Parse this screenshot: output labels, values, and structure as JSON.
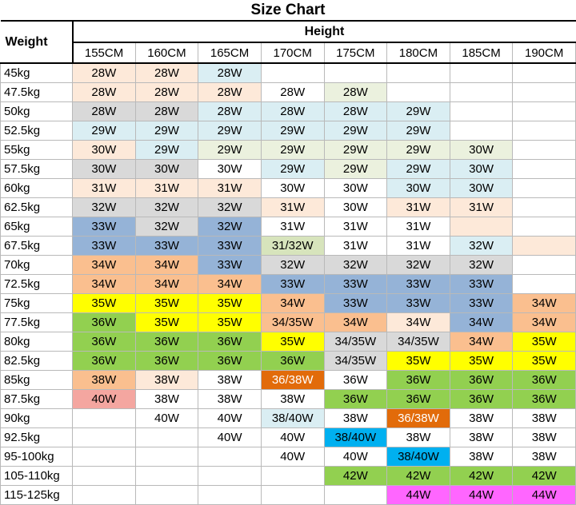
{
  "title": "Size Chart",
  "header": {
    "weight_label": "Weight",
    "height_label": "Height",
    "columns": [
      "155CM",
      "160CM",
      "165CM",
      "170CM",
      "175CM",
      "180CM",
      "185CM",
      "190CM"
    ]
  },
  "palette": {
    "white": "#FFFFFF",
    "peach": "#FDE9D9",
    "ltblue": "#DAEEF3",
    "ltgreen": "#EBF1DE",
    "gray": "#D9D9D9",
    "medblue": "#95B3D7",
    "tan": "#FABF8F",
    "yellow": "#FFFF00",
    "green": "#92D050",
    "dkorange": "#E26B0A",
    "cyan": "#00B0F0",
    "magenta": "#FF66FF",
    "ltolive": "#D7E4BC",
    "salmon": "#F4A6A0"
  },
  "chart_data": {
    "type": "table",
    "title": "Size Chart",
    "row_axis_label": "Weight",
    "col_axis_label": "Height",
    "columns": [
      "155CM",
      "160CM",
      "165CM",
      "170CM",
      "175CM",
      "180CM",
      "185CM",
      "190CM"
    ],
    "rows": [
      {
        "w": "45kg",
        "cells": [
          [
            "28W",
            "peach"
          ],
          [
            "28W",
            "peach"
          ],
          [
            "28W",
            "ltblue"
          ],
          [
            "",
            ""
          ],
          [
            "",
            ""
          ],
          [
            "",
            ""
          ],
          [
            "",
            ""
          ],
          [
            "",
            ""
          ]
        ]
      },
      {
        "w": "47.5kg",
        "cells": [
          [
            "28W",
            "peach"
          ],
          [
            "28W",
            "peach"
          ],
          [
            "28W",
            "peach"
          ],
          [
            "28W",
            "white"
          ],
          [
            "28W",
            "ltgreen"
          ],
          [
            "",
            ""
          ],
          [
            "",
            ""
          ],
          [
            "",
            ""
          ]
        ]
      },
      {
        "w": "50kg",
        "cells": [
          [
            "28W",
            "gray"
          ],
          [
            "28W",
            "gray"
          ],
          [
            "28W",
            "ltblue"
          ],
          [
            "28W",
            "ltblue"
          ],
          [
            "28W",
            "ltblue"
          ],
          [
            "29W",
            "ltblue"
          ],
          [
            "",
            ""
          ],
          [
            "",
            ""
          ]
        ]
      },
      {
        "w": "52.5kg",
        "cells": [
          [
            "29W",
            "ltblue"
          ],
          [
            "29W",
            "ltblue"
          ],
          [
            "29W",
            "ltblue"
          ],
          [
            "29W",
            "ltblue"
          ],
          [
            "29W",
            "ltblue"
          ],
          [
            "29W",
            "ltblue"
          ],
          [
            "",
            ""
          ],
          [
            "",
            ""
          ]
        ]
      },
      {
        "w": "55kg",
        "cells": [
          [
            "30W",
            "peach"
          ],
          [
            "29W",
            "ltblue"
          ],
          [
            "29W",
            "ltgreen"
          ],
          [
            "29W",
            "ltgreen"
          ],
          [
            "29W",
            "ltgreen"
          ],
          [
            "29W",
            "ltgreen"
          ],
          [
            "30W",
            "ltgreen"
          ],
          [
            "",
            ""
          ]
        ]
      },
      {
        "w": "57.5kg",
        "cells": [
          [
            "30W",
            "gray"
          ],
          [
            "30W",
            "gray"
          ],
          [
            "30W",
            "white"
          ],
          [
            "29W",
            "ltblue"
          ],
          [
            "29W",
            "ltgreen"
          ],
          [
            "29W",
            "ltblue"
          ],
          [
            "30W",
            "ltblue"
          ],
          [
            "",
            ""
          ]
        ]
      },
      {
        "w": "60kg",
        "cells": [
          [
            "31W",
            "peach"
          ],
          [
            "31W",
            "peach"
          ],
          [
            "31W",
            "peach"
          ],
          [
            "30W",
            "white"
          ],
          [
            "30W",
            "white"
          ],
          [
            "30W",
            "ltblue"
          ],
          [
            "30W",
            "ltblue"
          ],
          [
            "",
            ""
          ]
        ]
      },
      {
        "w": "62.5kg",
        "cells": [
          [
            "32W",
            "gray"
          ],
          [
            "32W",
            "gray"
          ],
          [
            "32W",
            "gray"
          ],
          [
            "31W",
            "peach"
          ],
          [
            "30W",
            "white"
          ],
          [
            "31W",
            "peach"
          ],
          [
            "31W",
            "peach"
          ],
          [
            "",
            ""
          ]
        ]
      },
      {
        "w": "65kg",
        "cells": [
          [
            "33W",
            "medblue"
          ],
          [
            "32W",
            "gray"
          ],
          [
            "32W",
            "medblue"
          ],
          [
            "31W",
            "white"
          ],
          [
            "31W",
            "white"
          ],
          [
            "31W",
            "white"
          ],
          [
            "",
            "peach"
          ],
          [
            "",
            ""
          ]
        ]
      },
      {
        "w": "67.5kg",
        "cells": [
          [
            "33W",
            "medblue"
          ],
          [
            "33W",
            "medblue"
          ],
          [
            "33W",
            "medblue"
          ],
          [
            "31/32W",
            "ltolive"
          ],
          [
            "31W",
            "white"
          ],
          [
            "31W",
            "white"
          ],
          [
            "32W",
            "ltblue"
          ],
          [
            "",
            "peach"
          ]
        ]
      },
      {
        "w": "70kg",
        "cells": [
          [
            "34W",
            "tan"
          ],
          [
            "34W",
            "tan"
          ],
          [
            "33W",
            "medblue"
          ],
          [
            "32W",
            "gray"
          ],
          [
            "32W",
            "gray"
          ],
          [
            "32W",
            "gray"
          ],
          [
            "32W",
            "gray"
          ],
          [
            "",
            ""
          ]
        ]
      },
      {
        "w": "72.5kg",
        "cells": [
          [
            "34W",
            "tan"
          ],
          [
            "34W",
            "tan"
          ],
          [
            "34W",
            "tan"
          ],
          [
            "33W",
            "medblue"
          ],
          [
            "33W",
            "medblue"
          ],
          [
            "33W",
            "medblue"
          ],
          [
            "33W",
            "medblue"
          ],
          [
            "",
            ""
          ]
        ]
      },
      {
        "w": "75kg",
        "cells": [
          [
            "35W",
            "yellow"
          ],
          [
            "35W",
            "yellow"
          ],
          [
            "35W",
            "yellow"
          ],
          [
            "34W",
            "tan"
          ],
          [
            "33W",
            "medblue"
          ],
          [
            "33W",
            "medblue"
          ],
          [
            "33W",
            "medblue"
          ],
          [
            "34W",
            "tan"
          ]
        ]
      },
      {
        "w": "77.5kg",
        "cells": [
          [
            "36W",
            "green"
          ],
          [
            "35W",
            "yellow"
          ],
          [
            "35W",
            "yellow"
          ],
          [
            "34/35W",
            "tan"
          ],
          [
            "34W",
            "tan"
          ],
          [
            "34W",
            "peach"
          ],
          [
            "34W",
            "medblue"
          ],
          [
            "34W",
            "tan"
          ]
        ]
      },
      {
        "w": "80kg",
        "cells": [
          [
            "36W",
            "green"
          ],
          [
            "36W",
            "green"
          ],
          [
            "36W",
            "green"
          ],
          [
            "35W",
            "yellow"
          ],
          [
            "34/35W",
            "gray"
          ],
          [
            "34/35W",
            "gray"
          ],
          [
            "34W",
            "tan"
          ],
          [
            "35W",
            "yellow"
          ]
        ]
      },
      {
        "w": "82.5kg",
        "cells": [
          [
            "36W",
            "green"
          ],
          [
            "36W",
            "green"
          ],
          [
            "36W",
            "green"
          ],
          [
            "36W",
            "green"
          ],
          [
            "34/35W",
            "gray"
          ],
          [
            "35W",
            "yellow"
          ],
          [
            "35W",
            "yellow"
          ],
          [
            "35W",
            "yellow"
          ]
        ]
      },
      {
        "w": "85kg",
        "cells": [
          [
            "38W",
            "tan"
          ],
          [
            "38W",
            "peach"
          ],
          [
            "38W",
            "white"
          ],
          [
            "36/38W",
            "dkorange",
            "#FFFFFF"
          ],
          [
            "36W",
            "white"
          ],
          [
            "36W",
            "green"
          ],
          [
            "36W",
            "green"
          ],
          [
            "36W",
            "green"
          ]
        ]
      },
      {
        "w": "87.5kg",
        "cells": [
          [
            "40W",
            "salmon"
          ],
          [
            "38W",
            "white"
          ],
          [
            "38W",
            "white"
          ],
          [
            "38W",
            "white"
          ],
          [
            "36W",
            "green"
          ],
          [
            "36W",
            "green"
          ],
          [
            "36W",
            "green"
          ],
          [
            "36W",
            "green"
          ]
        ]
      },
      {
        "w": "90kg",
        "cells": [
          [
            "",
            ""
          ],
          [
            "40W",
            "white"
          ],
          [
            "40W",
            "white"
          ],
          [
            "38/40W",
            "ltblue"
          ],
          [
            "38W",
            "white"
          ],
          [
            "36/38W",
            "dkorange",
            "#FFFFFF"
          ],
          [
            "38W",
            "white"
          ],
          [
            "38W",
            "white"
          ]
        ]
      },
      {
        "w": "92.5kg",
        "cells": [
          [
            "",
            ""
          ],
          [
            "",
            ""
          ],
          [
            "40W",
            "white"
          ],
          [
            "40W",
            "white"
          ],
          [
            "38/40W",
            "cyan"
          ],
          [
            "38W",
            "white"
          ],
          [
            "38W",
            "white"
          ],
          [
            "38W",
            "white"
          ]
        ]
      },
      {
        "w": "95-100kg",
        "cells": [
          [
            "",
            ""
          ],
          [
            "",
            ""
          ],
          [
            "",
            ""
          ],
          [
            "40W",
            "white"
          ],
          [
            "40W",
            "white"
          ],
          [
            "38/40W",
            "cyan"
          ],
          [
            "38W",
            "white"
          ],
          [
            "38W",
            "white"
          ]
        ]
      },
      {
        "w": "105-110kg",
        "cells": [
          [
            "",
            ""
          ],
          [
            "",
            ""
          ],
          [
            "",
            ""
          ],
          [
            "",
            ""
          ],
          [
            "42W",
            "green"
          ],
          [
            "42W",
            "green"
          ],
          [
            "42W",
            "green"
          ],
          [
            "42W",
            "green"
          ]
        ]
      },
      {
        "w": "115-125kg",
        "cells": [
          [
            "",
            ""
          ],
          [
            "",
            ""
          ],
          [
            "",
            ""
          ],
          [
            "",
            ""
          ],
          [
            "",
            ""
          ],
          [
            "44W",
            "magenta"
          ],
          [
            "44W",
            "magenta"
          ],
          [
            "44W",
            "magenta"
          ]
        ]
      }
    ]
  }
}
